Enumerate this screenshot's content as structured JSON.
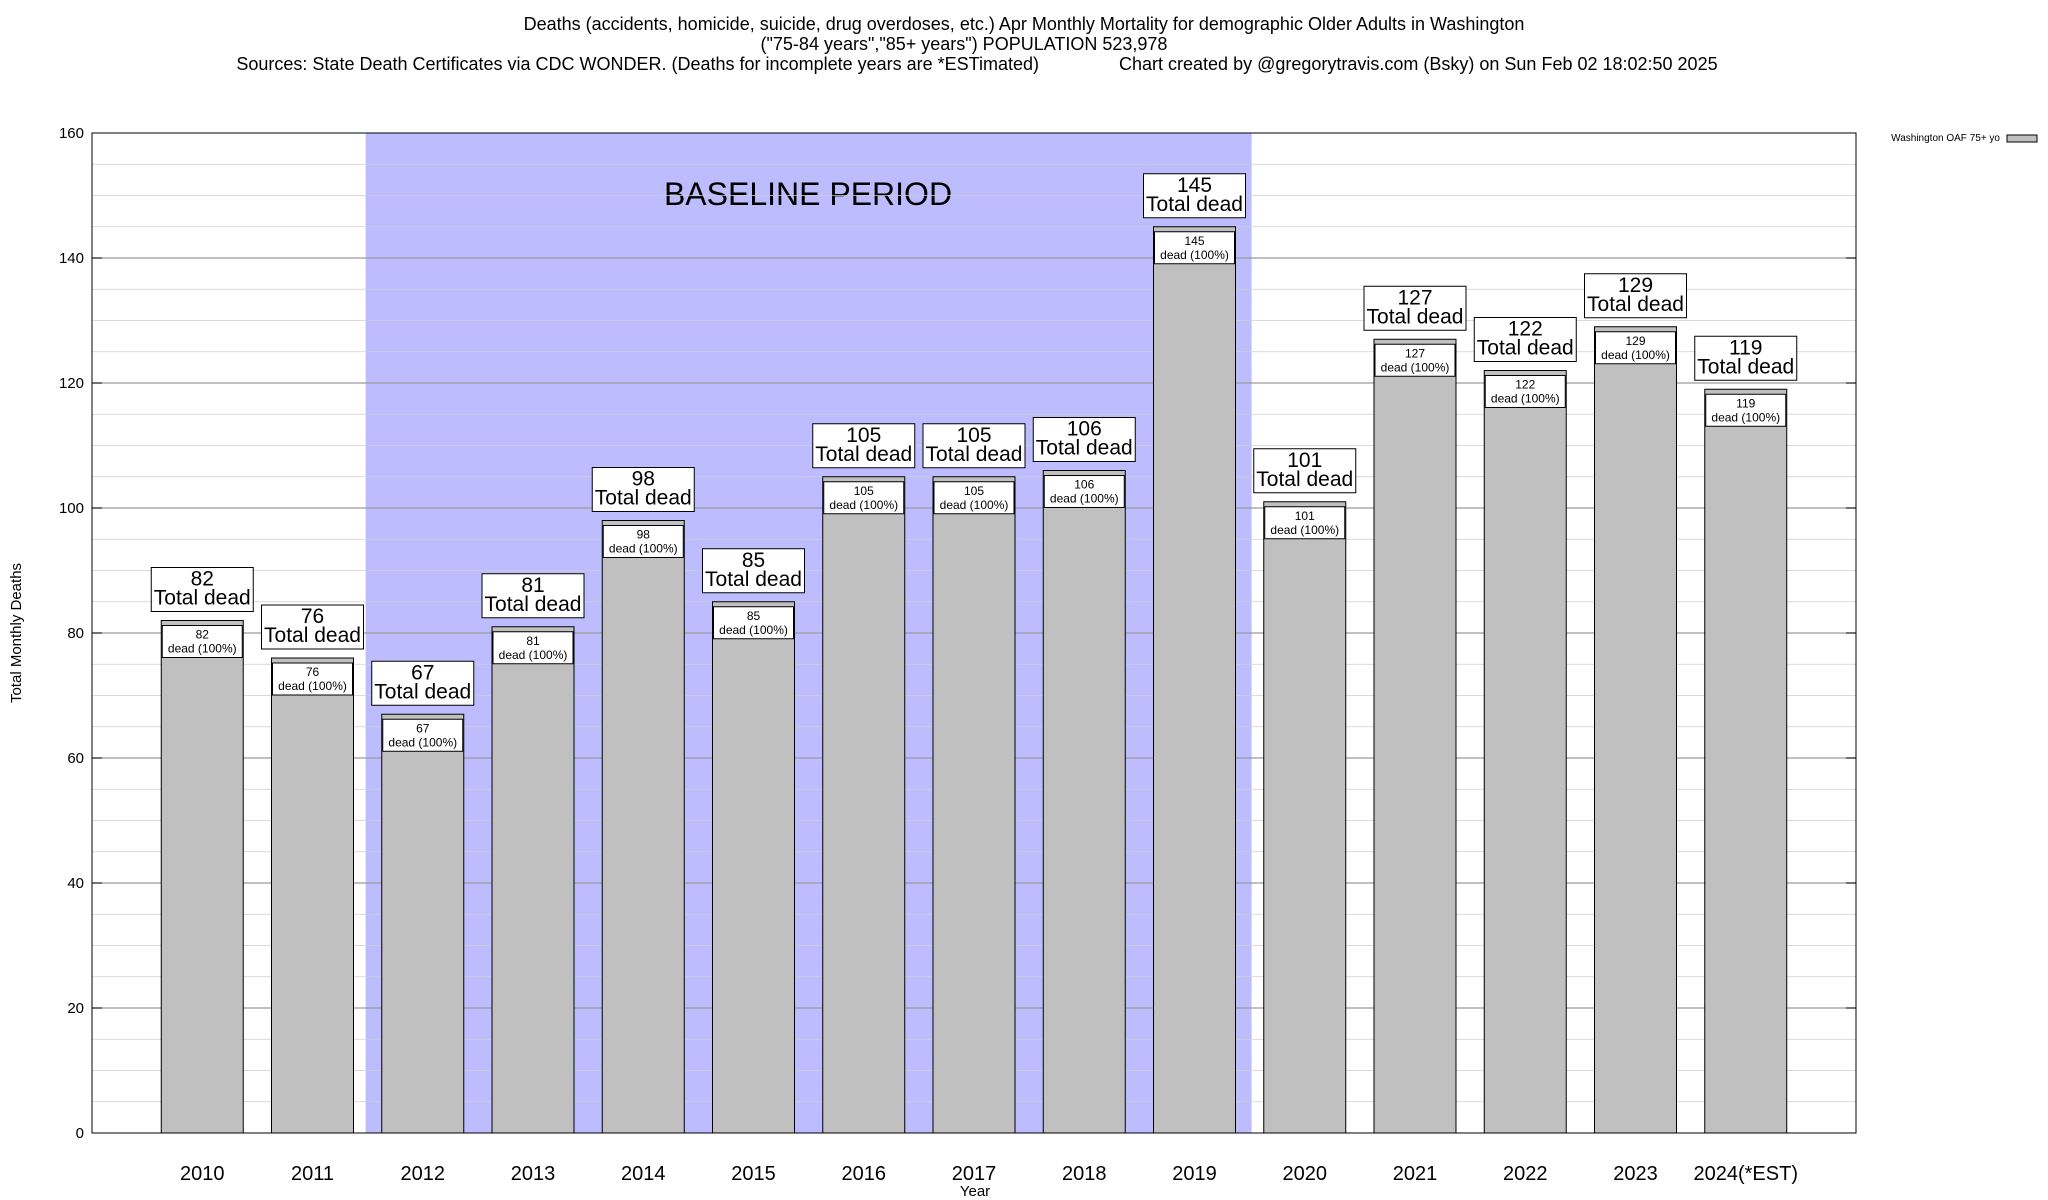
{
  "chart_data": {
    "type": "bar",
    "title_lines": [
      "Deaths (accidents, homicide, suicide, drug overdoses, etc.) Apr Monthly Mortality for demographic Older Adults in Washington",
      "(\"75-84 years\",\"85+ years\") POPULATION 523,978",
      "Sources: State Death Certificates via CDC WONDER. (Deaths for incomplete years are *ESTimated)                Chart created by @gregorytravis.com (Bsky) on Sun Feb 02 18:02:50 2025"
    ],
    "xlabel": "Year",
    "ylabel": "Total Monthly Deaths",
    "ylim": [
      0,
      160
    ],
    "yticks": [
      0,
      20,
      40,
      60,
      80,
      100,
      120,
      140,
      160
    ],
    "categories": [
      "2010",
      "2011",
      "2012",
      "2013",
      "2014",
      "2015",
      "2016",
      "2017",
      "2018",
      "2019",
      "2020",
      "2021",
      "2022",
      "2023",
      "2024(*EST)"
    ],
    "series": [
      {
        "name": "Washington OAF 75+ yo",
        "values": [
          82,
          76,
          67,
          81,
          98,
          85,
          105,
          105,
          106,
          145,
          101,
          127,
          122,
          129,
          119
        ],
        "color": "#c0c0c0"
      }
    ],
    "top_label_suffix": "Total dead",
    "inner_label_suffix": "dead (100%)",
    "baseline": {
      "label": "BASELINE PERIOD",
      "start": "2012",
      "end": "2019",
      "color": "#bcbcff"
    },
    "grid": true,
    "legend_position": "top-right"
  }
}
